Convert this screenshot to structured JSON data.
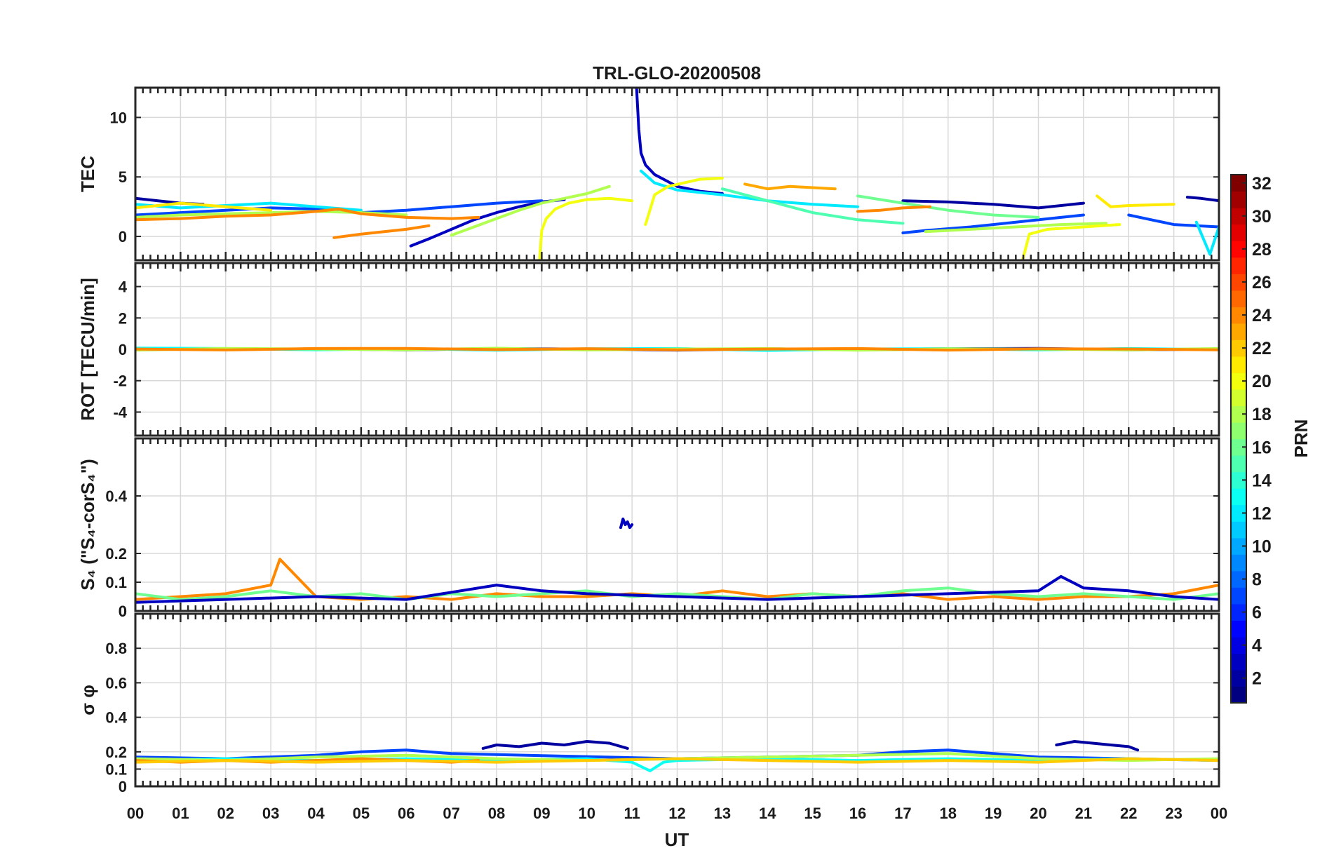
{
  "chart_data": {
    "type": "line",
    "title": "TRL-GLO-20200508",
    "xlabel": "UT",
    "xlim": [
      0,
      24
    ],
    "x_ticks": [
      "00",
      "01",
      "02",
      "03",
      "04",
      "05",
      "06",
      "07",
      "08",
      "09",
      "10",
      "11",
      "12",
      "13",
      "14",
      "15",
      "16",
      "17",
      "18",
      "19",
      "20",
      "21",
      "22",
      "23",
      "00"
    ],
    "colorbar": {
      "label": "PRN",
      "range": [
        1,
        32
      ],
      "ticks": [
        "2",
        "4",
        "6",
        "8",
        "10",
        "12",
        "14",
        "16",
        "18",
        "20",
        "22",
        "24",
        "26",
        "28",
        "30",
        "32"
      ],
      "colormap": "jet"
    },
    "panels": [
      {
        "id": "tec",
        "ylabel": "TEC",
        "ylim": [
          -2,
          12.5
        ],
        "yticks": [
          "0",
          "5",
          "10"
        ],
        "series": [
          {
            "prn": 3,
            "x": [
              6.1,
              6.5,
              7.0,
              7.5,
              8.0,
              8.5,
              9.0,
              9.5
            ],
            "y": [
              -0.8,
              -0.2,
              0.6,
              1.4,
              2.0,
              2.5,
              2.9,
              3.1
            ]
          },
          {
            "prn": 3,
            "x": [
              11.1,
              11.15,
              11.2,
              11.3,
              11.5,
              11.8,
              12.0,
              12.5,
              13.0
            ],
            "y": [
              12.5,
              9.0,
              7.0,
              6.0,
              5.2,
              4.6,
              4.2,
              3.8,
              3.6
            ]
          },
          {
            "prn": 2,
            "x": [
              0.0,
              0.5,
              1.0,
              1.5
            ],
            "y": [
              3.2,
              3.0,
              2.8,
              2.7
            ]
          },
          {
            "prn": 2,
            "x": [
              17.0,
              18.0,
              19.0,
              20.0,
              21.0
            ],
            "y": [
              3.0,
              2.9,
              2.7,
              2.4,
              2.8
            ]
          },
          {
            "prn": 2,
            "x": [
              23.3,
              23.6,
              24.0
            ],
            "y": [
              3.3,
              3.2,
              3.0
            ]
          },
          {
            "prn": 7,
            "x": [
              0.0,
              1.0,
              2.0,
              3.0,
              4.0,
              5.0,
              6.0,
              7.0,
              8.0,
              9.0
            ],
            "y": [
              1.8,
              2.0,
              2.2,
              2.4,
              2.3,
              2.0,
              2.2,
              2.5,
              2.8,
              3.0
            ]
          },
          {
            "prn": 7,
            "x": [
              17.0,
              17.5,
              18.5,
              19.5,
              20.5,
              21.0
            ],
            "y": [
              0.3,
              0.5,
              0.8,
              1.2,
              1.6,
              1.8
            ]
          },
          {
            "prn": 7,
            "x": [
              22.0,
              22.5,
              23.0,
              24.0
            ],
            "y": [
              1.8,
              1.4,
              1.0,
              0.8
            ]
          },
          {
            "prn": 12,
            "x": [
              0.0,
              1.0,
              2.0,
              3.0,
              4.0,
              5.0
            ],
            "y": [
              2.7,
              2.4,
              2.6,
              2.8,
              2.5,
              2.2
            ]
          },
          {
            "prn": 12,
            "x": [
              11.2,
              11.5,
              12.0,
              13.0,
              14.0,
              15.0,
              16.0
            ],
            "y": [
              5.5,
              4.5,
              3.9,
              3.5,
              3.0,
              2.7,
              2.5
            ]
          },
          {
            "prn": 12,
            "x": [
              23.5,
              23.8,
              24.0
            ],
            "y": [
              1.2,
              -1.5,
              0.8
            ]
          },
          {
            "prn": 15,
            "x": [
              13.0,
              14.0,
              15.0,
              16.0,
              17.0
            ],
            "y": [
              4.0,
              3.0,
              2.0,
              1.4,
              1.1
            ]
          },
          {
            "prn": 16,
            "x": [
              16.0,
              17.0,
              18.0,
              19.0,
              20.0
            ],
            "y": [
              3.4,
              2.8,
              2.2,
              1.8,
              1.6
            ]
          },
          {
            "prn": 18,
            "x": [
              0.0,
              1.0,
              2.0,
              3.0,
              4.0,
              5.0,
              6.0
            ],
            "y": [
              1.6,
              1.8,
              1.9,
              2.0,
              2.1,
              2.0,
              1.8
            ]
          },
          {
            "prn": 18,
            "x": [
              7.0,
              7.5,
              8.0,
              8.5,
              9.0,
              9.5,
              10.0,
              10.5
            ],
            "y": [
              0.1,
              0.8,
              1.5,
              2.2,
              2.8,
              3.2,
              3.6,
              4.2
            ]
          },
          {
            "prn": 18,
            "x": [
              17.5,
              18.5,
              19.5,
              20.5,
              21.5
            ],
            "y": [
              0.4,
              0.6,
              0.8,
              1.0,
              1.1
            ]
          },
          {
            "prn": 20,
            "x": [
              8.95,
              9.0,
              9.1,
              9.3,
              9.6,
              10.0,
              10.5,
              11.0
            ],
            "y": [
              -2.0,
              0.5,
              1.5,
              2.3,
              2.8,
              3.1,
              3.2,
              3.0
            ]
          },
          {
            "prn": 20,
            "x": [
              11.3,
              11.5,
              11.8,
              12.5,
              13.0
            ],
            "y": [
              1.0,
              3.5,
              4.2,
              4.8,
              4.9
            ]
          },
          {
            "prn": 20,
            "x": [
              19.65,
              19.8,
              20.2,
              21.0,
              21.8
            ],
            "y": [
              -2.0,
              0.2,
              0.6,
              0.8,
              1.0
            ]
          },
          {
            "prn": 21,
            "x": [
              0.0,
              1.0,
              2.0,
              3.0
            ],
            "y": [
              2.4,
              2.8,
              2.5,
              2.2
            ]
          },
          {
            "prn": 21,
            "x": [
              21.3,
              21.6,
              22.0,
              23.0
            ],
            "y": [
              3.4,
              2.5,
              2.6,
              2.7
            ]
          },
          {
            "prn": 23,
            "x": [
              13.5,
              14.0,
              14.5,
              15.0,
              15.5
            ],
            "y": [
              4.4,
              4.0,
              4.2,
              4.1,
              4.0
            ]
          },
          {
            "prn": 24,
            "x": [
              0.0,
              1.0,
              2.0,
              3.0,
              4.0,
              4.5,
              5.0,
              6.0,
              7.0,
              7.6
            ],
            "y": [
              1.4,
              1.5,
              1.7,
              1.8,
              2.1,
              2.3,
              1.9,
              1.6,
              1.5,
              1.6
            ]
          },
          {
            "prn": 24,
            "x": [
              4.4,
              5.0,
              6.0,
              6.5
            ],
            "y": [
              -0.1,
              0.2,
              0.6,
              0.9
            ]
          },
          {
            "prn": 24,
            "x": [
              16.0,
              16.5,
              17.0,
              17.6
            ],
            "y": [
              2.1,
              2.2,
              2.4,
              2.5
            ]
          }
        ]
      },
      {
        "id": "rot",
        "ylabel": "ROT [TECU/min]",
        "ylim": [
          -5.5,
          5.5
        ],
        "yticks": [
          "-4",
          "-2",
          "0",
          "2",
          "4"
        ],
        "series": [
          {
            "prn": 3,
            "x": [
              0,
              2,
              4,
              6,
              8,
              10,
              12,
              14,
              16,
              18,
              20,
              22,
              24
            ],
            "y": [
              0.05,
              -0.02,
              0.03,
              -0.04,
              0.05,
              0.02,
              -0.05,
              0.03,
              -0.02,
              0.04,
              0.06,
              -0.03,
              0.02
            ]
          },
          {
            "prn": 13,
            "x": [
              0,
              2,
              4,
              6,
              8,
              10,
              12,
              14,
              16,
              18,
              20,
              22,
              24
            ],
            "y": [
              0.08,
              0.05,
              -0.03,
              0.04,
              -0.06,
              0.03,
              0.05,
              -0.07,
              0.02,
              0.04,
              -0.03,
              0.05,
              -0.02
            ]
          },
          {
            "prn": 18,
            "x": [
              0,
              2,
              4,
              6,
              8,
              10,
              12,
              14,
              16,
              18,
              20,
              22,
              24
            ],
            "y": [
              -0.05,
              0.06,
              0.02,
              -0.03,
              0.07,
              -0.04,
              0.02,
              0.05,
              -0.06,
              0.03,
              0.02,
              -0.04,
              0.05
            ]
          },
          {
            "prn": 24,
            "x": [
              0,
              2,
              4,
              6,
              8,
              10,
              12,
              14,
              16,
              18,
              20,
              22,
              24
            ],
            "y": [
              0.02,
              -0.04,
              0.05,
              0.06,
              -0.02,
              0.04,
              -0.03,
              0.02,
              0.05,
              -0.05,
              0.03,
              0.02,
              -0.03
            ]
          }
        ]
      },
      {
        "id": "s4",
        "ylabel": "S₄ (\"S₄-corS₄\")",
        "ylim": [
          0,
          0.6
        ],
        "yticks": [
          "0",
          "0.1",
          "0.2",
          "0.4"
        ],
        "extra_ytick": "0",
        "series": [
          {
            "prn": 3,
            "x": [
              10.75,
              10.8,
              10.85,
              10.9,
              10.95,
              11.0
            ],
            "y": [
              0.29,
              0.32,
              0.3,
              0.31,
              0.29,
              0.3
            ]
          },
          {
            "prn": 24,
            "x": [
              0,
              1,
              2,
              3,
              3.2,
              4,
              5,
              6,
              7,
              8,
              9,
              10,
              11,
              12,
              13,
              14,
              15,
              16,
              17,
              18,
              19,
              20,
              21,
              22,
              23,
              24
            ],
            "y": [
              0.04,
              0.05,
              0.06,
              0.09,
              0.18,
              0.05,
              0.04,
              0.05,
              0.04,
              0.06,
              0.05,
              0.05,
              0.06,
              0.05,
              0.07,
              0.05,
              0.06,
              0.05,
              0.06,
              0.04,
              0.05,
              0.04,
              0.05,
              0.05,
              0.06,
              0.09
            ]
          },
          {
            "prn": 16,
            "x": [
              0,
              1,
              2,
              3,
              4,
              5,
              6,
              7,
              8,
              9,
              10,
              11,
              12,
              13,
              14,
              15,
              16,
              17,
              18,
              19,
              20,
              21,
              22,
              23,
              24
            ],
            "y": [
              0.06,
              0.04,
              0.05,
              0.07,
              0.05,
              0.06,
              0.04,
              0.06,
              0.05,
              0.06,
              0.07,
              0.05,
              0.06,
              0.05,
              0.04,
              0.06,
              0.05,
              0.07,
              0.08,
              0.06,
              0.05,
              0.06,
              0.05,
              0.04,
              0.06
            ]
          },
          {
            "prn": 3,
            "x": [
              0,
              2,
              4,
              6,
              8,
              9,
              10,
              12,
              14,
              16,
              18,
              20,
              20.5,
              21,
              22,
              23,
              24
            ],
            "y": [
              0.03,
              0.04,
              0.05,
              0.04,
              0.09,
              0.07,
              0.06,
              0.05,
              0.04,
              0.05,
              0.06,
              0.07,
              0.12,
              0.08,
              0.07,
              0.05,
              0.04
            ]
          }
        ]
      },
      {
        "id": "sigma",
        "ylabel": "σ φ",
        "ylim": [
          0,
          1.0
        ],
        "yticks": [
          "0",
          "0.1",
          "0.2",
          "0.4",
          "0.6",
          "0.8"
        ],
        "series": [
          {
            "prn": 2,
            "x": [
              7.7,
              8.0,
              8.5,
              9.0,
              9.5,
              10.0,
              10.5,
              10.9
            ],
            "y": [
              0.22,
              0.24,
              0.23,
              0.25,
              0.24,
              0.26,
              0.25,
              0.22
            ]
          },
          {
            "prn": 2,
            "x": [
              20.4,
              20.8,
              21.2,
              21.6,
              22.0,
              22.2
            ],
            "y": [
              0.24,
              0.26,
              0.25,
              0.24,
              0.23,
              0.21
            ]
          },
          {
            "prn": 7,
            "x": [
              0,
              2,
              4,
              5,
              6,
              7,
              12,
              14,
              16,
              17,
              18,
              19,
              20,
              24
            ],
            "y": [
              0.17,
              0.16,
              0.18,
              0.2,
              0.21,
              0.19,
              0.16,
              0.17,
              0.18,
              0.2,
              0.21,
              0.19,
              0.17,
              0.15
            ]
          },
          {
            "prn": 13,
            "x": [
              0,
              2,
              4,
              6,
              8,
              10,
              11,
              11.4,
              11.7,
              12,
              14,
              16,
              18,
              20,
              22,
              24
            ],
            "y": [
              0.15,
              0.16,
              0.15,
              0.16,
              0.15,
              0.16,
              0.14,
              0.09,
              0.14,
              0.15,
              0.16,
              0.15,
              0.16,
              0.15,
              0.16,
              0.15
            ]
          },
          {
            "prn": 18,
            "x": [
              0,
              2,
              4,
              6,
              8,
              10,
              12,
              14,
              16,
              18,
              20,
              22,
              24
            ],
            "y": [
              0.16,
              0.15,
              0.17,
              0.18,
              0.16,
              0.15,
              0.16,
              0.17,
              0.18,
              0.19,
              0.16,
              0.15,
              0.16
            ]
          },
          {
            "prn": 24,
            "x": [
              0,
              1,
              2,
              3,
              4,
              5,
              6,
              7,
              7.6
            ],
            "y": [
              0.15,
              0.14,
              0.15,
              0.14,
              0.15,
              0.16,
              0.15,
              0.14,
              0.15
            ]
          },
          {
            "prn": 22,
            "x": [
              0,
              2,
              4,
              6,
              8,
              10,
              12,
              14,
              16,
              18,
              20,
              22,
              24
            ],
            "y": [
              0.14,
              0.15,
              0.14,
              0.15,
              0.14,
              0.15,
              0.16,
              0.15,
              0.14,
              0.15,
              0.14,
              0.16,
              0.15
            ]
          }
        ]
      }
    ]
  }
}
